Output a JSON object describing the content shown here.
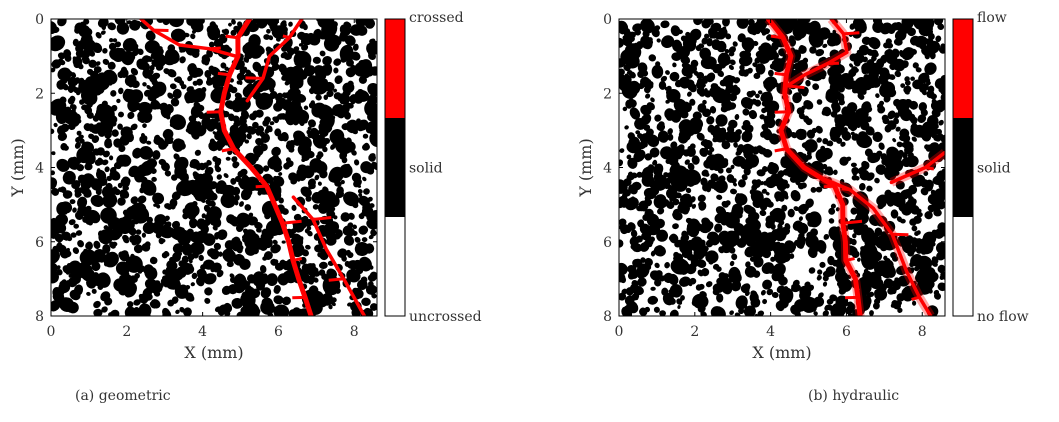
{
  "chart_data": [
    {
      "type": "heatmap",
      "caption": "(a) geometric",
      "xlabel": "X (mm)",
      "ylabel": "Y (mm)",
      "xlim": [
        0,
        8.6
      ],
      "ylim": [
        0,
        8
      ],
      "y_reversed": true,
      "xticks": [
        "0",
        "2",
        "4",
        "6",
        "8"
      ],
      "yticks": [
        "0",
        "2",
        "4",
        "6",
        "8"
      ],
      "colorbar": {
        "top": "crossed",
        "middle": "solid",
        "bottom": "uncrossed"
      },
      "colors": {
        "path": "#ff0000",
        "solid": "#000000",
        "void": "#ffffff"
      },
      "path_x_by_y": [
        [
          0.0,
          5.2
        ],
        [
          0.5,
          4.9
        ],
        [
          1.0,
          4.9
        ],
        [
          1.5,
          4.7
        ],
        [
          2.0,
          4.6
        ],
        [
          2.5,
          4.5
        ],
        [
          3.0,
          4.6
        ],
        [
          3.5,
          4.8
        ],
        [
          4.0,
          5.3
        ],
        [
          4.5,
          5.7
        ],
        [
          5.0,
          5.9
        ],
        [
          5.5,
          6.1
        ],
        [
          6.0,
          6.3
        ],
        [
          6.5,
          6.4
        ],
        [
          7.0,
          6.5
        ],
        [
          7.5,
          6.7
        ],
        [
          8.0,
          6.9
        ]
      ],
      "branches": [
        [
          [
            0.0,
            2.4
          ],
          [
            0.3,
            2.7
          ],
          [
            0.7,
            3.4
          ],
          [
            0.8,
            4.2
          ],
          [
            1.0,
            4.9
          ]
        ],
        [
          [
            0.0,
            6.6
          ],
          [
            0.5,
            6.3
          ],
          [
            1.0,
            5.8
          ],
          [
            1.6,
            5.6
          ],
          [
            2.2,
            5.2
          ]
        ],
        [
          [
            4.8,
            6.4
          ],
          [
            5.4,
            6.9
          ],
          [
            6.2,
            7.3
          ],
          [
            7.0,
            7.7
          ],
          [
            8.0,
            8.3
          ]
        ]
      ]
    },
    {
      "type": "heatmap",
      "caption": "(b) hydraulic",
      "xlabel": "X (mm)",
      "ylabel": "Y (mm)",
      "xlim": [
        0,
        8.6
      ],
      "ylim": [
        0,
        8
      ],
      "y_reversed": true,
      "xticks": [
        "0",
        "2",
        "4",
        "6",
        "8"
      ],
      "yticks": [
        "0",
        "2",
        "4",
        "6",
        "8"
      ],
      "colorbar": {
        "top": "flow",
        "middle": "solid",
        "bottom": "no flow"
      },
      "colors": {
        "path": "#ff0000",
        "solid": "#000000",
        "void": "#ffffff"
      },
      "path_x_by_y": [
        [
          0.0,
          3.9
        ],
        [
          0.5,
          4.3
        ],
        [
          1.0,
          4.5
        ],
        [
          1.5,
          4.4
        ],
        [
          2.0,
          4.4
        ],
        [
          2.5,
          4.5
        ],
        [
          3.0,
          4.3
        ],
        [
          3.5,
          4.4
        ],
        [
          4.0,
          4.9
        ],
        [
          4.5,
          5.7
        ],
        [
          5.0,
          5.9
        ],
        [
          5.5,
          5.9
        ],
        [
          6.0,
          6.0
        ],
        [
          6.5,
          6.0
        ],
        [
          7.0,
          6.2
        ],
        [
          7.5,
          6.3
        ],
        [
          8.0,
          6.4
        ]
      ],
      "branches": [
        [
          [
            0.0,
            5.6
          ],
          [
            0.4,
            5.9
          ],
          [
            0.9,
            6.0
          ],
          [
            1.2,
            5.5
          ],
          [
            1.5,
            4.9
          ],
          [
            1.8,
            4.4
          ]
        ],
        [
          [
            4.3,
            5.4
          ],
          [
            4.6,
            6.1
          ],
          [
            5.1,
            6.7
          ],
          [
            5.8,
            7.2
          ],
          [
            6.8,
            7.6
          ],
          [
            7.5,
            7.9
          ],
          [
            8.0,
            8.2
          ]
        ],
        [
          [
            3.6,
            8.6
          ],
          [
            4.0,
            8.1
          ],
          [
            4.4,
            7.2
          ]
        ]
      ]
    }
  ]
}
